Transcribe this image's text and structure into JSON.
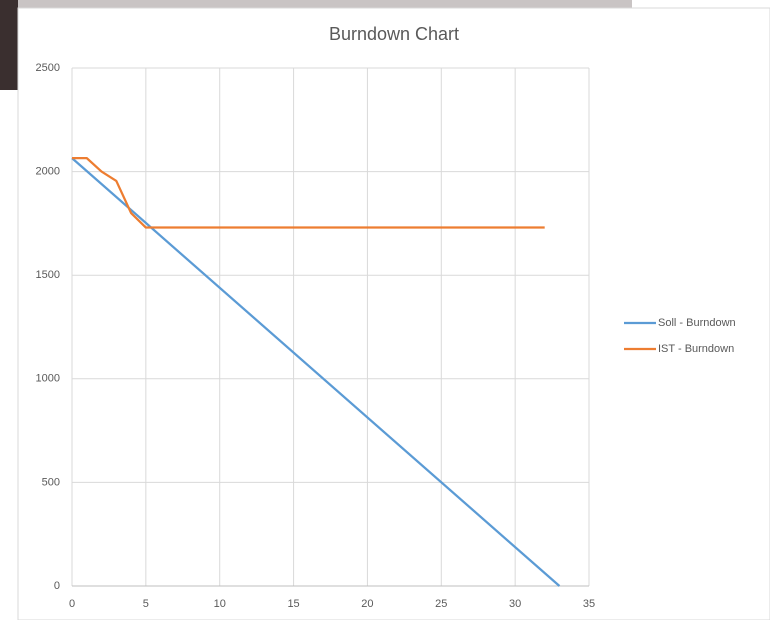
{
  "chart_data": {
    "type": "line",
    "title": "Burndown Chart",
    "series": [
      {
        "name": "Soll - Burndown",
        "color": "#5b9bd5",
        "x": [
          0,
          33
        ],
        "values": [
          2065,
          0
        ]
      },
      {
        "name": "IST - Burndown",
        "color": "#ed7d31",
        "x": [
          0,
          1,
          2,
          3,
          4,
          5,
          6,
          7,
          8,
          9,
          10,
          11,
          12,
          13,
          14,
          15,
          16,
          17,
          18,
          19,
          20,
          21,
          22,
          23,
          24,
          25,
          26,
          27,
          28,
          29,
          30,
          31,
          32
        ],
        "values": [
          2065,
          2065,
          2000,
          1955,
          1800,
          1730,
          1730,
          1730,
          1730,
          1730,
          1730,
          1730,
          1730,
          1730,
          1730,
          1730,
          1730,
          1730,
          1730,
          1730,
          1730,
          1730,
          1730,
          1730,
          1730,
          1730,
          1730,
          1730,
          1730,
          1730,
          1730,
          1730,
          1730
        ]
      }
    ],
    "xlim": [
      0,
      35
    ],
    "xticks": [
      0,
      5,
      10,
      15,
      20,
      25,
      30,
      35
    ],
    "ylim": [
      0,
      2500
    ],
    "yticks": [
      0,
      500,
      1000,
      1500,
      2000,
      2500
    ],
    "grid": true,
    "legend": "right"
  }
}
